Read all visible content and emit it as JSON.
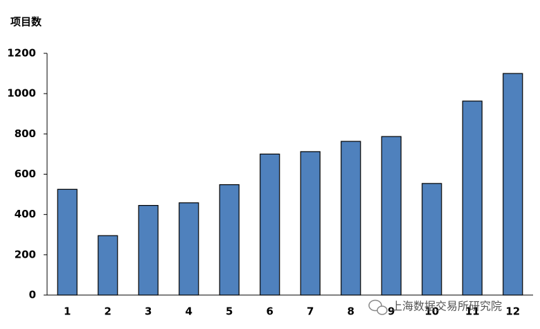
{
  "chart_data": {
    "type": "bar",
    "y_label": "项目数",
    "categories": [
      "1",
      "2",
      "3",
      "4",
      "5",
      "6",
      "7",
      "8",
      "9",
      "10",
      "11",
      "12"
    ],
    "values": [
      525,
      295,
      445,
      458,
      548,
      700,
      712,
      763,
      787,
      554,
      963,
      1100
    ],
    "color": "#4f81bd",
    "ylim": [
      0,
      1200
    ],
    "yticks": [
      0,
      200,
      400,
      600,
      800,
      1000,
      1200
    ],
    "grid": false
  },
  "watermark": "上海数据交易所研究院"
}
